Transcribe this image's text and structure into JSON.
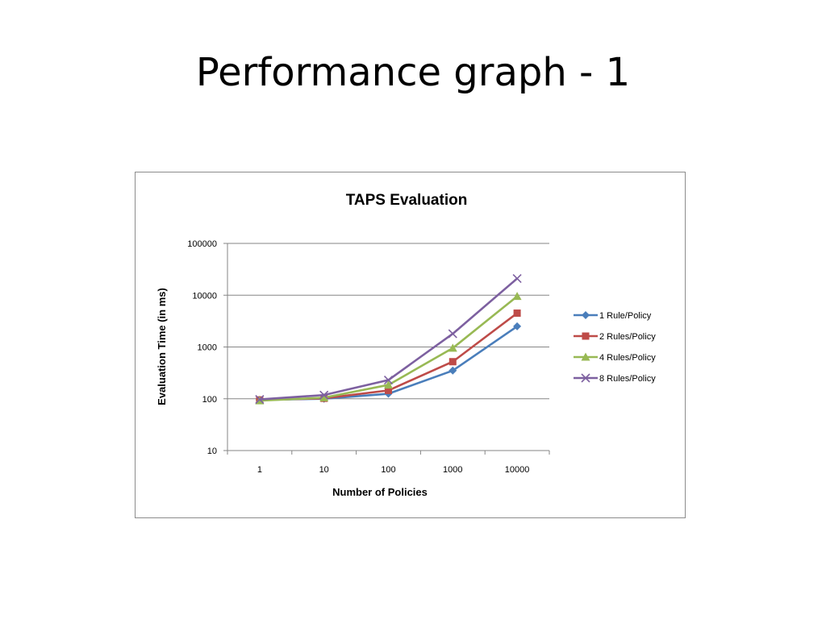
{
  "slide": {
    "title": "Performance graph - 1"
  },
  "chart_data": {
    "type": "line",
    "title": "TAPS Evaluation",
    "xlabel": "Number of Policies",
    "ylabel": "Evaluation Time (in ms)",
    "categories": [
      "1",
      "10",
      "100",
      "1000",
      "10000"
    ],
    "y_scale": "log",
    "ylim": [
      10,
      100000
    ],
    "y_ticks": [
      "10",
      "100",
      "1000",
      "10000",
      "100000"
    ],
    "grid": true,
    "legend_position": "right",
    "series": [
      {
        "name": "1 Rule/Policy",
        "color": "#4a7ebb",
        "marker": "diamond",
        "values": [
          95,
          100,
          125,
          350,
          2500
        ]
      },
      {
        "name": "2 Rules/Policy",
        "color": "#be4b48",
        "marker": "square",
        "values": [
          95,
          102,
          145,
          520,
          4500
        ]
      },
      {
        "name": "4 Rules/Policy",
        "color": "#98b954",
        "marker": "triangle",
        "values": [
          92,
          105,
          185,
          950,
          9500
        ]
      },
      {
        "name": "8 Rules/Policy",
        "color": "#7d60a0",
        "marker": "x",
        "values": [
          97,
          118,
          230,
          1800,
          21000
        ]
      }
    ]
  }
}
